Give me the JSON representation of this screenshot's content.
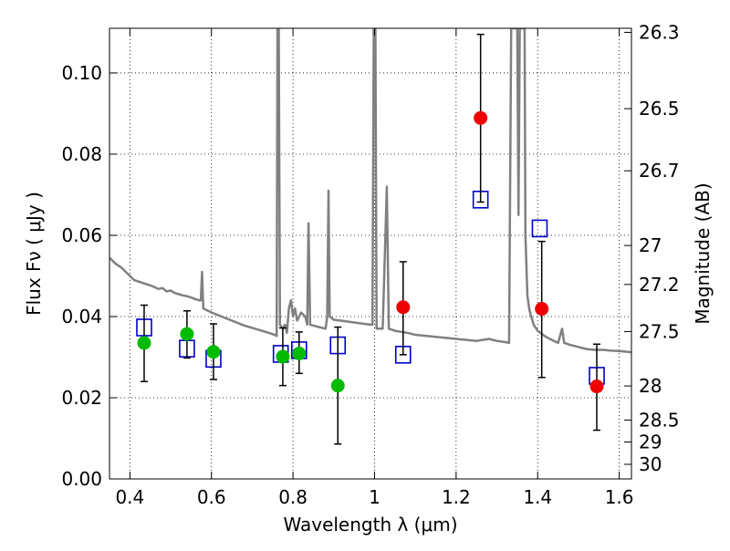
{
  "chart_data": {
    "type": "scatter",
    "title": "",
    "xlabel": "Wavelength  λ (μm)",
    "ylabel": "Flux  Fν  ( μJy )",
    "y2label": "Magnitude (AB)",
    "xlim": [
      0.35,
      1.63
    ],
    "ylim": [
      0.0,
      0.111
    ],
    "grid": true,
    "x_ticks": [
      {
        "value": 0.4,
        "label": "0.4"
      },
      {
        "value": 0.6,
        "label": "0.6"
      },
      {
        "value": 0.8,
        "label": "0.8"
      },
      {
        "value": 1.0,
        "label": "1"
      },
      {
        "value": 1.2,
        "label": "1.2"
      },
      {
        "value": 1.4,
        "label": "1.4"
      },
      {
        "value": 1.6,
        "label": "1.6"
      }
    ],
    "y_ticks": [
      {
        "value": 0.0,
        "label": "0.00"
      },
      {
        "value": 0.02,
        "label": "0.02"
      },
      {
        "value": 0.04,
        "label": "0.04"
      },
      {
        "value": 0.06,
        "label": "0.06"
      },
      {
        "value": 0.08,
        "label": "0.08"
      },
      {
        "value": 0.1,
        "label": "0.10"
      }
    ],
    "mag_ticks": [
      {
        "label": "26.3",
        "flux": 0.11
      },
      {
        "label": "26.5",
        "flux": 0.0912
      },
      {
        "label": "26.7",
        "flux": 0.0759
      },
      {
        "label": "27",
        "flux": 0.0575
      },
      {
        "label": "27.2",
        "flux": 0.0479
      },
      {
        "label": "27.5",
        "flux": 0.0363
      },
      {
        "label": "28",
        "flux": 0.0229
      },
      {
        "label": "28.5",
        "flux": 0.0145
      },
      {
        "label": "29",
        "flux": 0.0091
      },
      {
        "label": "30",
        "flux": 0.0036
      }
    ],
    "series": [
      {
        "color": "#808080",
        "style": "line",
        "points": [
          [
            0.35,
            0.0545
          ],
          [
            0.365,
            0.053
          ],
          [
            0.38,
            0.052
          ],
          [
            0.395,
            0.0505
          ],
          [
            0.41,
            0.049
          ],
          [
            0.425,
            0.0485
          ],
          [
            0.44,
            0.048
          ],
          [
            0.455,
            0.0475
          ],
          [
            0.47,
            0.0468
          ],
          [
            0.48,
            0.047
          ],
          [
            0.49,
            0.0462
          ],
          [
            0.5,
            0.0464
          ],
          [
            0.51,
            0.0458
          ],
          [
            0.52,
            0.0455
          ],
          [
            0.53,
            0.0452
          ],
          [
            0.54,
            0.045
          ],
          [
            0.55,
            0.0447
          ],
          [
            0.56,
            0.0443
          ],
          [
            0.57,
            0.044
          ],
          [
            0.574,
            0.044
          ],
          [
            0.577,
            0.051
          ],
          [
            0.58,
            0.042
          ],
          [
            0.6,
            0.041
          ],
          [
            0.62,
            0.0402
          ],
          [
            0.64,
            0.0394
          ],
          [
            0.66,
            0.0386
          ],
          [
            0.68,
            0.0378
          ],
          [
            0.7,
            0.0372
          ],
          [
            0.72,
            0.0366
          ],
          [
            0.74,
            0.036
          ],
          [
            0.755,
            0.0355
          ],
          [
            0.76,
            0.0352
          ],
          [
            0.762,
            0.111
          ],
          [
            0.765,
            0.111
          ],
          [
            0.768,
            0.038
          ],
          [
            0.775,
            0.037
          ],
          [
            0.78,
            0.038
          ],
          [
            0.785,
            0.036
          ],
          [
            0.79,
            0.042
          ],
          [
            0.795,
            0.044
          ],
          [
            0.8,
            0.04
          ],
          [
            0.805,
            0.042
          ],
          [
            0.81,
            0.039
          ],
          [
            0.82,
            0.041
          ],
          [
            0.83,
            0.04
          ],
          [
            0.835,
            0.038
          ],
          [
            0.838,
            0.063
          ],
          [
            0.842,
            0.038
          ],
          [
            0.86,
            0.0375
          ],
          [
            0.88,
            0.037
          ],
          [
            0.884,
            0.04
          ],
          [
            0.887,
            0.071
          ],
          [
            0.89,
            0.04
          ],
          [
            0.9,
            0.0392
          ],
          [
            0.93,
            0.0388
          ],
          [
            0.96,
            0.0384
          ],
          [
            0.99,
            0.038
          ],
          [
            0.995,
            0.038
          ],
          [
            0.998,
            0.111
          ],
          [
            1.002,
            0.111
          ],
          [
            1.005,
            0.037
          ],
          [
            1.02,
            0.037
          ],
          [
            1.03,
            0.072
          ],
          [
            1.035,
            0.037
          ],
          [
            1.05,
            0.0365
          ],
          [
            1.08,
            0.036
          ],
          [
            1.1,
            0.0355
          ],
          [
            1.15,
            0.035
          ],
          [
            1.2,
            0.0345
          ],
          [
            1.25,
            0.034
          ],
          [
            1.28,
            0.0345
          ],
          [
            1.3,
            0.034
          ],
          [
            1.32,
            0.0337
          ],
          [
            1.33,
            0.0335
          ],
          [
            1.335,
            0.111
          ],
          [
            1.34,
            0.111
          ],
          [
            1.35,
            0.111
          ],
          [
            1.353,
            0.065
          ],
          [
            1.356,
            0.111
          ],
          [
            1.36,
            0.111
          ],
          [
            1.368,
            0.111
          ],
          [
            1.37,
            0.06
          ],
          [
            1.375,
            0.045
          ],
          [
            1.38,
            0.0415
          ],
          [
            1.39,
            0.038
          ],
          [
            1.4,
            0.0365
          ],
          [
            1.42,
            0.035
          ],
          [
            1.44,
            0.034
          ],
          [
            1.45,
            0.0335
          ],
          [
            1.46,
            0.037
          ],
          [
            1.465,
            0.0335
          ],
          [
            1.48,
            0.033
          ],
          [
            1.5,
            0.0325
          ],
          [
            1.52,
            0.032
          ],
          [
            1.54,
            0.0318
          ],
          [
            1.56,
            0.0318
          ],
          [
            1.58,
            0.0316
          ],
          [
            1.6,
            0.0315
          ],
          [
            1.63,
            0.0312
          ]
        ]
      },
      {
        "color": "#0000cc",
        "style": "open-square",
        "points": [
          [
            0.435,
            0.0373
          ],
          [
            0.54,
            0.0321
          ],
          [
            0.605,
            0.0296
          ],
          [
            0.77,
            0.0308
          ],
          [
            0.815,
            0.0317
          ],
          [
            0.91,
            0.0329
          ],
          [
            1.07,
            0.0306
          ],
          [
            1.26,
            0.0688
          ],
          [
            1.405,
            0.0617
          ],
          [
            1.545,
            0.0254
          ]
        ]
      },
      {
        "color": "#00bb00",
        "style": "filled-circle",
        "points": [
          {
            "x": 0.435,
            "y": 0.0335,
            "lo": 0.024,
            "hi": 0.0428
          },
          {
            "x": 0.54,
            "y": 0.0357,
            "lo": 0.0298,
            "hi": 0.0414
          },
          {
            "x": 0.605,
            "y": 0.0313,
            "lo": 0.0245,
            "hi": 0.0382
          },
          {
            "x": 0.775,
            "y": 0.0301,
            "lo": 0.023,
            "hi": 0.0372
          },
          {
            "x": 0.815,
            "y": 0.0309,
            "lo": 0.026,
            "hi": 0.0362
          },
          {
            "x": 0.91,
            "y": 0.023,
            "lo": 0.0086,
            "hi": 0.0374
          }
        ]
      },
      {
        "color": "#ee0000",
        "style": "filled-circle",
        "points": [
          {
            "x": 1.07,
            "y": 0.0423,
            "lo": 0.0306,
            "hi": 0.0535
          },
          {
            "x": 1.26,
            "y": 0.0889,
            "lo": 0.0682,
            "hi": 0.1095
          },
          {
            "x": 1.41,
            "y": 0.0419,
            "lo": 0.025,
            "hi": 0.0585
          },
          {
            "x": 1.545,
            "y": 0.0228,
            "lo": 0.012,
            "hi": 0.0332
          }
        ]
      }
    ]
  }
}
